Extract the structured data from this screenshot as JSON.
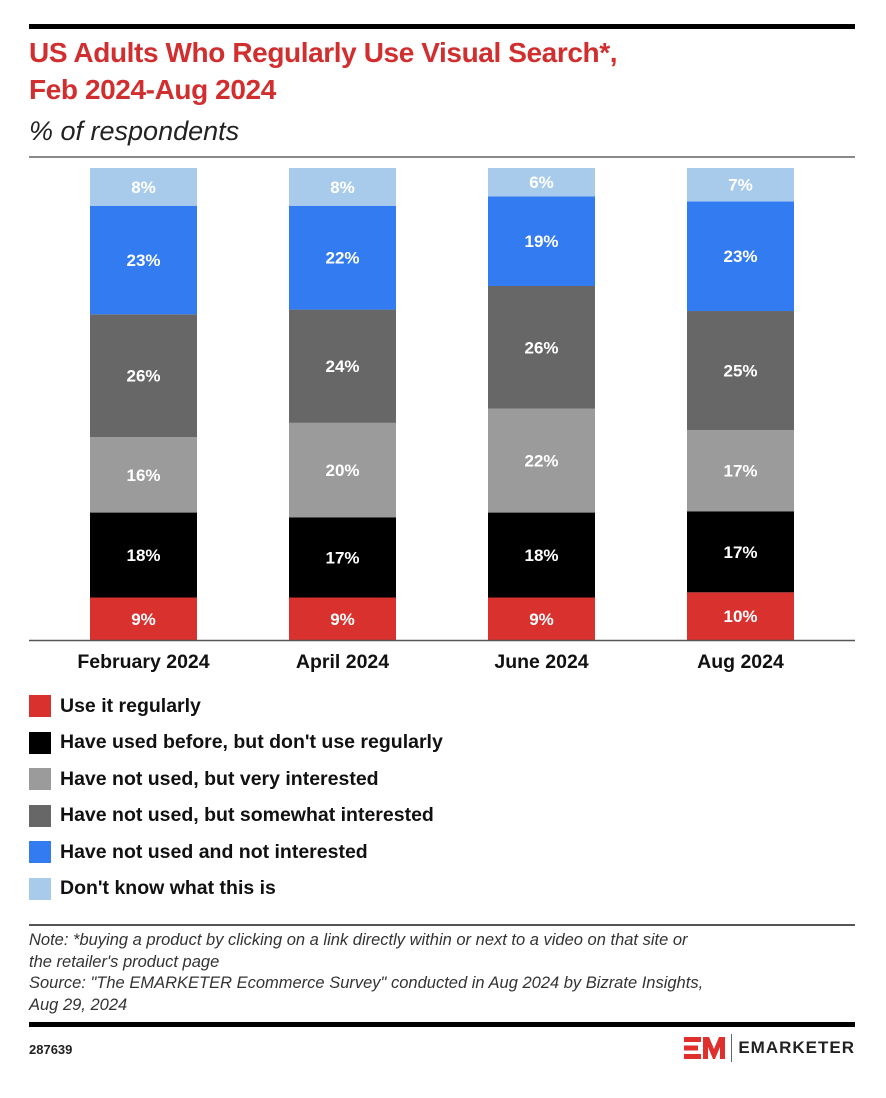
{
  "header": {
    "title_line1": "US Adults Who Regularly Use Visual Search*,",
    "title_line2": "Feb 2024-Aug 2024",
    "subtitle": "% of respondents"
  },
  "chart_data": {
    "type": "bar",
    "stacked": true,
    "title": "US Adults Who Regularly Use Visual Search*, Feb 2024-Aug 2024",
    "subtitle": "% of respondents",
    "xlabel": "",
    "ylabel": "% of respondents",
    "ylim": [
      0,
      100
    ],
    "grid": false,
    "legend_position": "bottom",
    "categories": [
      "February 2024",
      "April 2024",
      "June 2024",
      "Aug 2024"
    ],
    "series": [
      {
        "name": "Use it regularly",
        "color": "#d9312d",
        "values": [
          9,
          9,
          9,
          10
        ]
      },
      {
        "name": "Have used before, but don't use regularly",
        "color": "#000000",
        "values": [
          18,
          17,
          18,
          17
        ]
      },
      {
        "name": "Have not used, but very interested",
        "color": "#9b9b9b",
        "values": [
          16,
          20,
          22,
          17
        ]
      },
      {
        "name": "Have not used, but somewhat interested",
        "color": "#676767",
        "values": [
          26,
          24,
          26,
          25
        ]
      },
      {
        "name": "Have not used and not interested",
        "color": "#337bf0",
        "values": [
          23,
          22,
          19,
          23
        ]
      },
      {
        "name": "Don't know what this is",
        "color": "#a9cbeb",
        "values": [
          8,
          8,
          6,
          7
        ]
      }
    ],
    "value_suffix": "%"
  },
  "footer": {
    "note_line1": "Note: *buying a product by clicking on a link directly within or next to a video on that site or",
    "note_line2": "the retailer's product page",
    "source_line1": "Source: \"The EMARKETER Ecommerce Survey\" conducted in Aug 2024 by Bizrate Insights,",
    "source_line2": "Aug 29, 2024",
    "chart_id": "287639",
    "brand_mark": "EM",
    "brand_name": "EMARKETER",
    "brand_color": "#e0302e"
  }
}
